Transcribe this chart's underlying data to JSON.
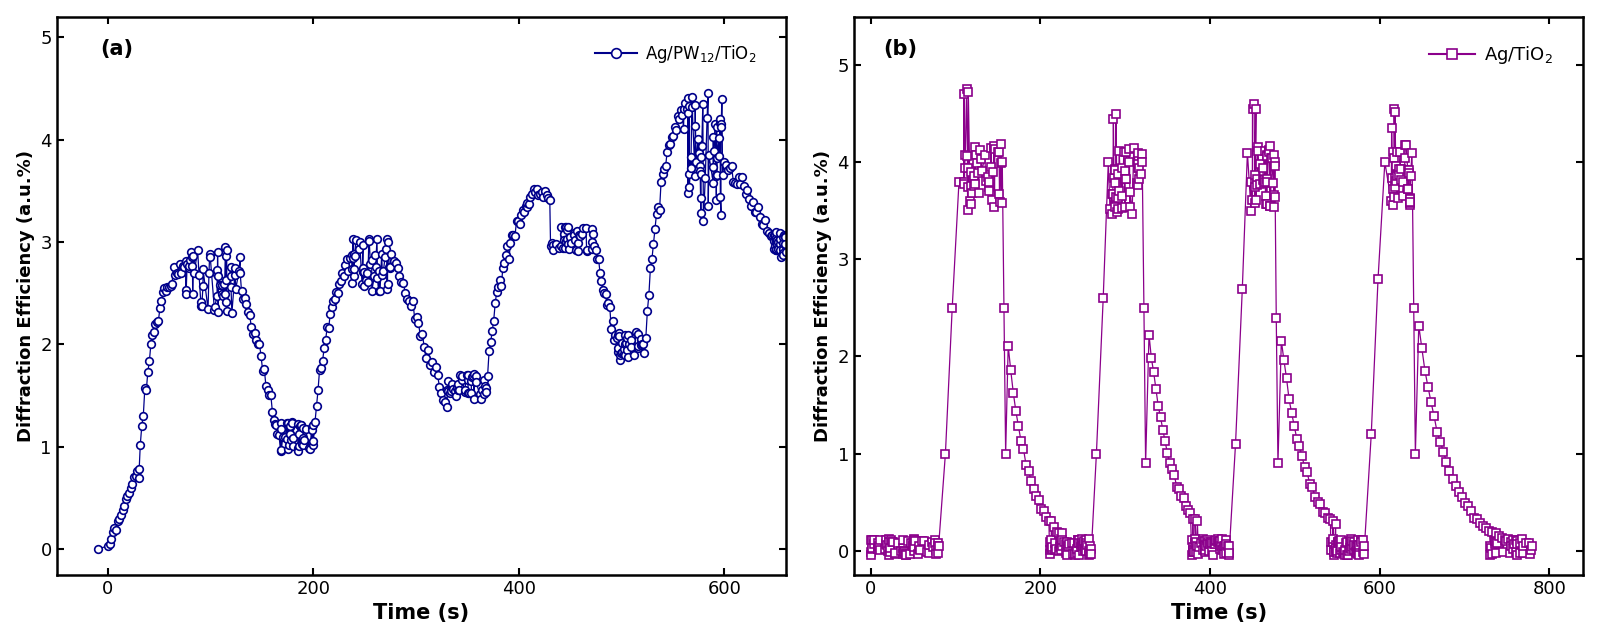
{
  "panel_a": {
    "color": "#00008B",
    "marker": "o",
    "xlabel": "Time (s)",
    "ylabel": "Diffraction Efficiency (a.u.%)",
    "panel_label": "(a)",
    "xlim": [
      -50,
      660
    ],
    "ylim": [
      -0.25,
      5.2
    ],
    "xticks": [
      0,
      200,
      400,
      600
    ],
    "yticks": [
      0,
      1,
      2,
      3,
      4,
      5
    ]
  },
  "panel_b": {
    "color": "#8B008B",
    "marker": "s",
    "xlabel": "Time (s)",
    "ylabel": "Diffraction Efficiency (a.u.%)",
    "panel_label": "(b)",
    "xlim": [
      -20,
      840
    ],
    "ylim": [
      -0.25,
      5.5
    ],
    "xticks": [
      0,
      200,
      400,
      600,
      800
    ],
    "yticks": [
      0,
      1,
      2,
      3,
      4,
      5
    ]
  }
}
